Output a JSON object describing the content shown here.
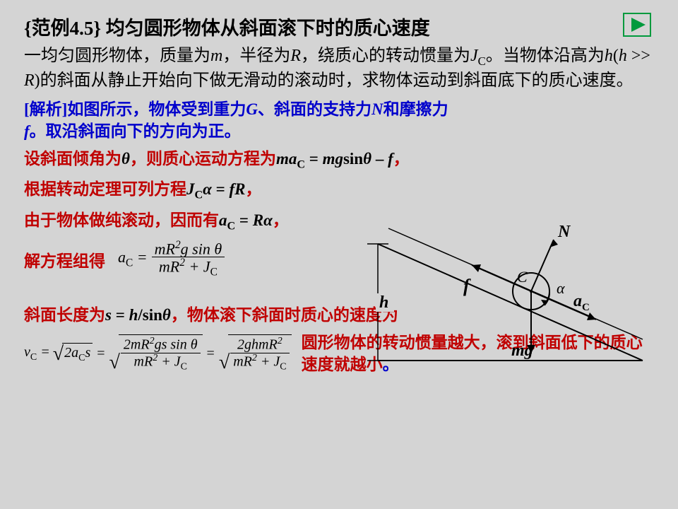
{
  "title": "{范例4.5} 均匀圆形物体从斜面滚下时的质心速度",
  "problem": "一均匀圆形物体，质量为<span class='italic'>m</span>，半径为<span class='italic'>R</span>，绕质心的转动惯量为<span class='italic'>J</span><span class='sub'>C</span>。当物体沿高为<span class='italic'>h</span>(<span class='italic'>h</span> &gt;&gt; <span class='italic'>R</span>)的斜面从静止开始向下做无滑动的滚动时，求物体运动到斜面底下的质心速度。",
  "analysis": "[解析]如图所示，物体受到重力<span class='italic'>G</span>、斜面的支持力<span class='italic'>N</span>和摩擦力<span class='italic'>f</span>。取沿斜面向下的方向为正。",
  "line_angle": "<span class='red'>设斜面倾角为</span><span class='italic blackb'>θ</span><span class='red'>，则质心运动方程为</span><span class='italic blackb'>ma</span><span class='sub blackb'>C</span><span class='blackb'> = <span class='italic'>mg</span>sin<span class='italic'>θ</span> – <span class='italic'>f</span></span><span class='red'>，</span>",
  "line_torque": "<span class='red'>根据转动定理可列方程</span><span class='italic blackb'>J</span><span class='sub blackb'>C</span><span class='italic blackb'>α</span><span class='blackb'> = <span class='italic'>fR</span></span><span class='red'>，</span>",
  "line_roll": "<span class='red'>由于物体做纯滚动，因而有</span><span class='italic blackb'>a</span><span class='sub blackb'>C</span><span class='blackb'> = <span class='italic'>Rα</span></span><span class='red'>，</span>",
  "line_solve": "解方程组得",
  "line_length": "<span class='red'>斜面长度为</span><span class='italic blackb'>s</span><span class='blackb'> = <span class='italic'>h</span>/sin<span class='italic'>θ</span></span><span class='red'>，物体滚下斜面时质心的速度为</span>",
  "conclusion": "圆形物体的转动惯量越大，滚到斜面低下的质心速度就越小",
  "conclusion_end": "。",
  "formula_ac": {
    "lhs": "a<sub style='font-size:0.7em;font-style:normal'>C</sub> =",
    "num": "mR<span class='sup'>2</span>g sin θ",
    "den": "mR<span class='sup'>2</span> + J<sub style='font-size:0.7em;font-style:normal'>C</sub>"
  },
  "formula_vc": {
    "lhs": "v<sub style='font-size:0.7em;font-style:normal'>C</sub> =",
    "rad1": "2a<sub style='font-size:0.7em;font-style:normal'>C</sub>s",
    "num2": "2mR<span class='sup'>2</span>gs sin θ",
    "den2": "mR<span class='sup'>2</span> + J<sub style='font-size:0.7em;font-style:normal'>C</sub>",
    "num3": "2ghmR<span class='sup'>2</span>",
    "den3": "mR<span class='sup'>2</span> + J<sub style='font-size:0.7em;font-style:normal'>C</sub>"
  },
  "diagram": {
    "labels": {
      "N": "N",
      "C": "C",
      "alpha": "α",
      "f": "f",
      "aC": "a",
      "aCsub": "C",
      "h": "h",
      "mg": "mg"
    },
    "colors": {
      "line": "#000000",
      "text": "#000000"
    },
    "font": {
      "label_size": 22,
      "family": "Times New Roman"
    }
  },
  "nav": {
    "color": "#009a3d",
    "bg": "#d4d4d4"
  }
}
